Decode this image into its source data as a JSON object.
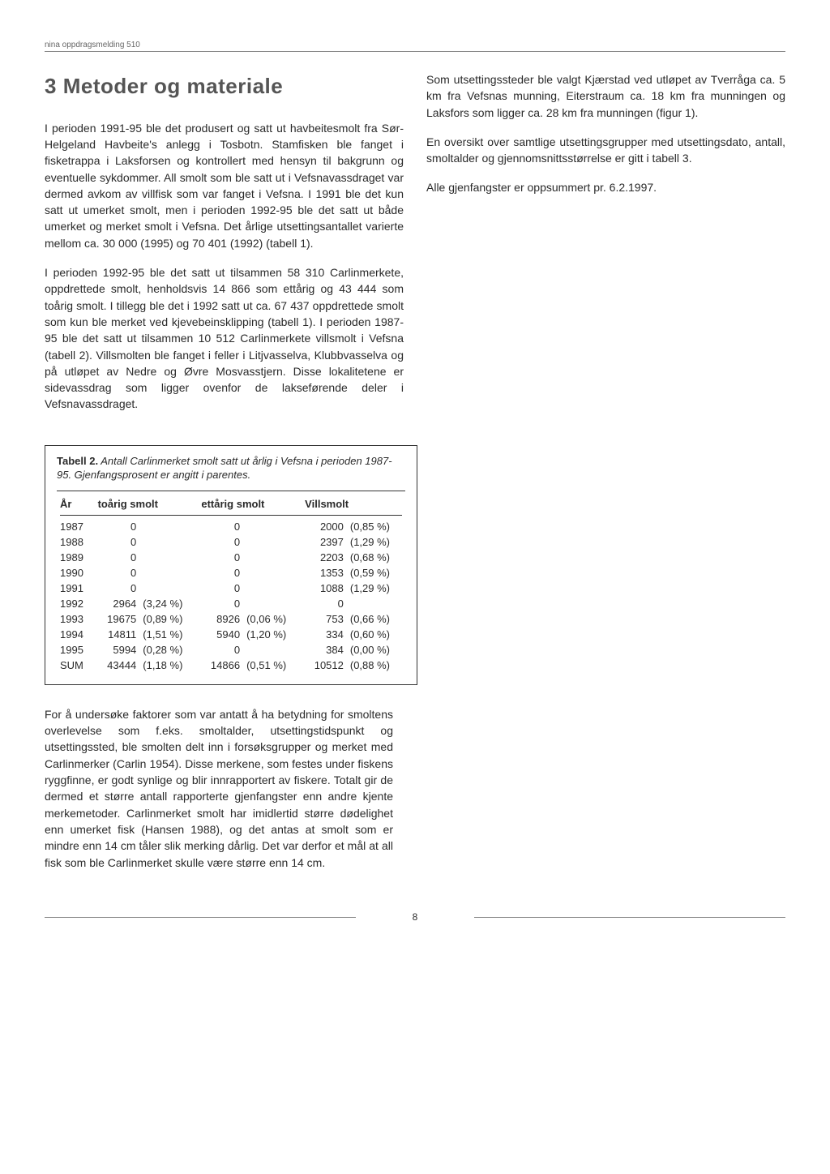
{
  "header": {
    "series": "nina oppdragsmelding 510"
  },
  "section": {
    "number": "3",
    "title": "Metoder og materiale"
  },
  "paragraphs": {
    "left1": "I perioden 1991-95 ble det produsert og satt ut havbeitesmolt fra Sør-Helgeland Havbeite's anlegg i Tosbotn. Stamfisken ble fanget i fisketrappa i Laksforsen og kontrollert med hensyn til bakgrunn og eventuelle sykdommer. All smolt som ble satt ut i Vefsnavassdraget var dermed avkom av villfisk som var fanget i Vefsna. I 1991 ble det kun satt ut umerket smolt, men i perioden 1992-95 ble det satt ut både umerket og merket smolt i Vefsna. Det årlige utsettingsantallet varierte mellom ca. 30 000 (1995) og 70 401 (1992) (tabell 1).",
    "left2": "I perioden 1992-95 ble det satt ut tilsammen 58 310 Carlinmerkete, oppdrettede smolt, henholdsvis 14 866 som ettårig og 43 444 som toårig smolt. I tillegg ble det i 1992 satt ut ca. 67 437 oppdrettede smolt som kun ble merket ved kjevebeinsklipping (tabell 1). I perioden 1987-95 ble det satt ut tilsammen 10 512 Carlinmerkete villsmolt i Vefsna (tabell 2). Villsmolten ble fanget i feller i Litjvasselva, Klubbvasselva og på utløpet av Nedre og Øvre Mosvasstjern. Disse lokalitetene er sidevassdrag som ligger ovenfor de lakseførende deler i Vefsnavassdraget.",
    "right1": "Som utsettingssteder ble valgt Kjærstad ved utløpet av Tverråga ca. 5 km fra Vefsnas munning, Eiterstraum ca. 18 km fra munningen og Laksfors som ligger ca. 28 km fra munningen (figur 1).",
    "right2": "En oversikt over samtlige utsettingsgrupper med utsettingsdato, antall, smoltalder og gjennomsnittsstørrelse er gitt i tabell 3.",
    "right3": "Alle gjenfangster er oppsummert pr. 6.2.1997.",
    "bottom": "For å undersøke faktorer som var antatt å ha betydning for smoltens overlevelse som f.eks. smoltalder, utsettingstidspunkt og utsettingssted, ble smolten delt inn i forsøksgrupper og merket med Carlinmerker (Carlin 1954). Disse merkene, som festes under fiskens ryggfinne, er godt synlige og blir innrapportert av fiskere. Totalt gir de dermed et større antall rapporterte gjenfangster enn andre kjente merkemetoder. Carlinmerket smolt har imidlertid større dødelighet enn umerket fisk (Hansen 1988), og det antas at smolt som er mindre enn 14 cm tåler slik merking dårlig. Det var derfor et mål at all fisk som ble Carlinmerket skulle være større enn 14 cm."
  },
  "table": {
    "caption_label": "Tabell 2.",
    "caption_text": "Antall Carlinmerket smolt satt ut årlig i Vefsna i perioden 1987-95. Gjenfangsprosent er angitt i parentes.",
    "columns": [
      "År",
      "toårig smolt",
      "ettårig smolt",
      "Villsmolt"
    ],
    "rows": [
      {
        "year": "1987",
        "to_n": "0",
        "to_p": "",
        "et_n": "0",
        "et_p": "",
        "vi_n": "2000",
        "vi_p": "(0,85 %)"
      },
      {
        "year": "1988",
        "to_n": "0",
        "to_p": "",
        "et_n": "0",
        "et_p": "",
        "vi_n": "2397",
        "vi_p": "(1,29 %)"
      },
      {
        "year": "1989",
        "to_n": "0",
        "to_p": "",
        "et_n": "0",
        "et_p": "",
        "vi_n": "2203",
        "vi_p": "(0,68 %)"
      },
      {
        "year": "1990",
        "to_n": "0",
        "to_p": "",
        "et_n": "0",
        "et_p": "",
        "vi_n": "1353",
        "vi_p": "(0,59 %)"
      },
      {
        "year": "1991",
        "to_n": "0",
        "to_p": "",
        "et_n": "0",
        "et_p": "",
        "vi_n": "1088",
        "vi_p": "(1,29 %)"
      },
      {
        "year": "1992",
        "to_n": "2964",
        "to_p": "(3,24 %)",
        "et_n": "0",
        "et_p": "",
        "vi_n": "0",
        "vi_p": ""
      },
      {
        "year": "1993",
        "to_n": "19675",
        "to_p": "(0,89 %)",
        "et_n": "8926",
        "et_p": "(0,06 %)",
        "vi_n": "753",
        "vi_p": "(0,66 %)"
      },
      {
        "year": "1994",
        "to_n": "14811",
        "to_p": "(1,51 %)",
        "et_n": "5940",
        "et_p": "(1,20 %)",
        "vi_n": "334",
        "vi_p": "(0,60 %)"
      },
      {
        "year": "1995",
        "to_n": "5994",
        "to_p": "(0,28 %)",
        "et_n": "0",
        "et_p": "",
        "vi_n": "384",
        "vi_p": "(0,00 %)"
      },
      {
        "year": "SUM",
        "to_n": "43444",
        "to_p": "(1,18 %)",
        "et_n": "14866",
        "et_p": "(0,51 %)",
        "vi_n": "10512",
        "vi_p": "(0,88 %)"
      }
    ]
  },
  "page_number": "8"
}
